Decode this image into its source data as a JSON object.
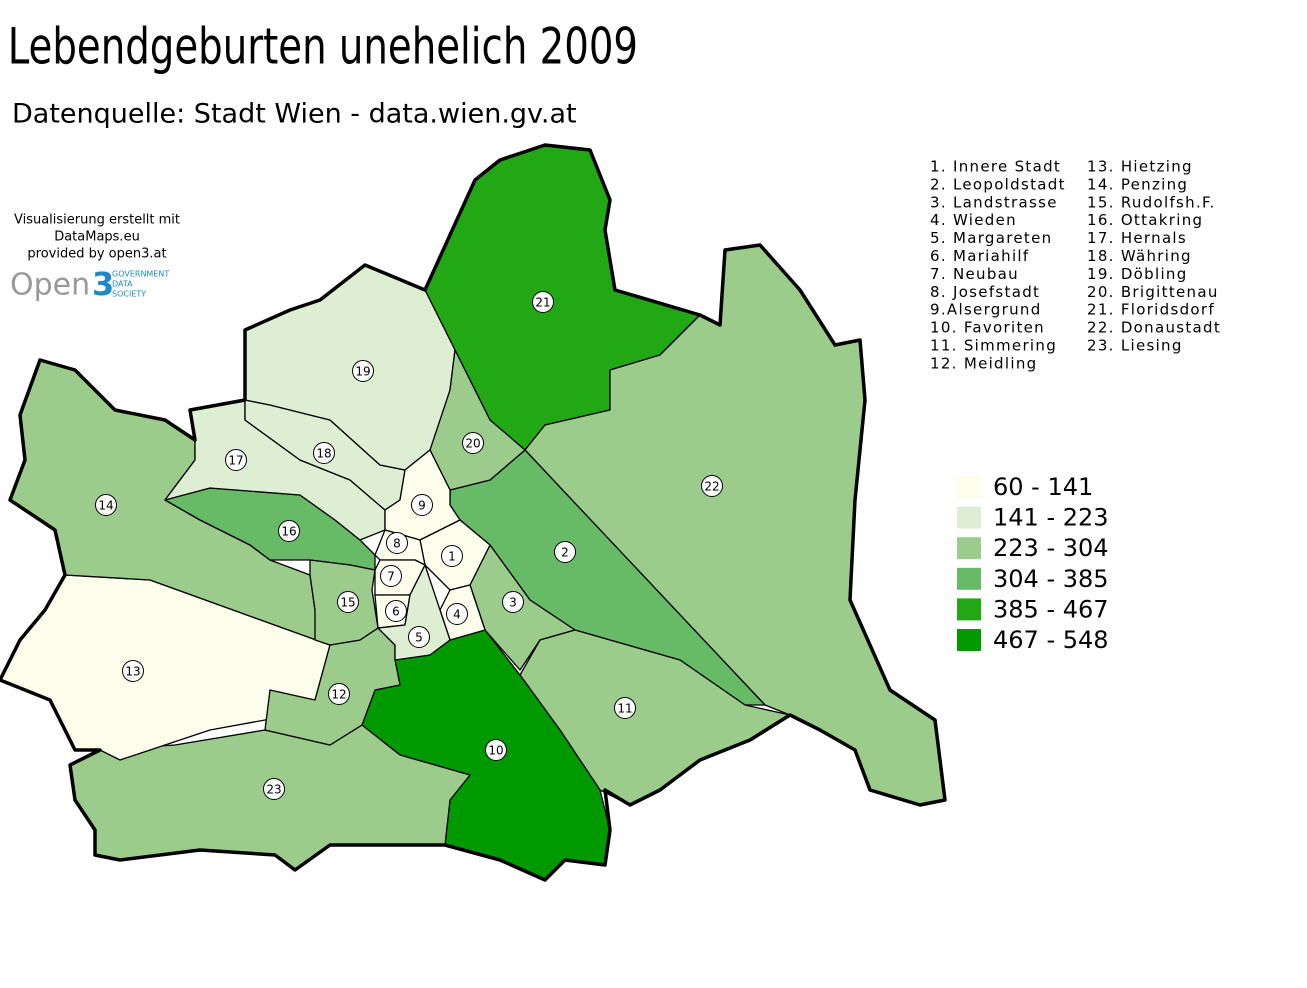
{
  "title": "Lebendgeburten unehelich 2009",
  "subtitle": "Datenquelle: Stadt Wien - data.wien.gv.at",
  "credits": [
    "Visualisierung erstellt mit",
    "DataMaps.eu",
    "provided by open3.at"
  ],
  "logo": {
    "name": "Open",
    "mark": "3",
    "tagline": [
      "GOVERNMENT",
      "DATA",
      "SOCIETY"
    ]
  },
  "district_list": [
    "1. Innere Stadt",
    "2. Leopoldstadt",
    "3. Landstrasse",
    "4. Wieden",
    "5. Margareten",
    "6. Mariahilf",
    "7. Neubau",
    "8. Josefstadt",
    "9.Alsergrund",
    "10. Favoriten",
    "11. Simmering",
    "12. Meidling",
    "13. Hietzing",
    "14. Penzing",
    "15. Rudolfsh.F.",
    "16. Ottakring",
    "17. Hernals",
    "18. Währing",
    "19. Döbling",
    "20. Brigittenau",
    "21. Floridsdorf",
    "22. Donaustadt",
    "23. Liesing"
  ],
  "legend": [
    {
      "label": "60 - 141",
      "color": "#fdfdec"
    },
    {
      "label": "141 - 223",
      "color": "#ddeed3"
    },
    {
      "label": "223 - 304",
      "color": "#9bcc8b"
    },
    {
      "label": "304 - 385",
      "color": "#67bb67"
    },
    {
      "label": "385 - 467",
      "color": "#22a814"
    },
    {
      "label": "467 - 548",
      "color": "#009900"
    }
  ],
  "districts": [
    {
      "label": "1",
      "color": "#fdfdec"
    },
    {
      "label": "2",
      "color": "#67bb67"
    },
    {
      "label": "3",
      "color": "#9bcc8b"
    },
    {
      "label": "4",
      "color": "#fdfdec"
    },
    {
      "label": "5",
      "color": "#ddeed3"
    },
    {
      "label": "6",
      "color": "#fdfdec"
    },
    {
      "label": "7",
      "color": "#fdfdec"
    },
    {
      "label": "8",
      "color": "#fdfdec"
    },
    {
      "label": "9",
      "color": "#fdfdec"
    },
    {
      "label": "10",
      "color": "#009900"
    },
    {
      "label": "11",
      "color": "#9bcc8b"
    },
    {
      "label": "12",
      "color": "#9bcc8b"
    },
    {
      "label": "13",
      "color": "#fdfdec"
    },
    {
      "label": "14",
      "color": "#9bcc8b"
    },
    {
      "label": "15",
      "color": "#9bcc8b"
    },
    {
      "label": "16",
      "color": "#67bb67"
    },
    {
      "label": "17",
      "color": "#ddeed3"
    },
    {
      "label": "18",
      "color": "#ddeed3"
    },
    {
      "label": "19",
      "color": "#ddeed3"
    },
    {
      "label": "20",
      "color": "#9bcc8b"
    },
    {
      "label": "21",
      "color": "#22a814"
    },
    {
      "label": "22",
      "color": "#22a814"
    },
    {
      "label": "23",
      "color": "#9bcc8b"
    }
  ]
}
